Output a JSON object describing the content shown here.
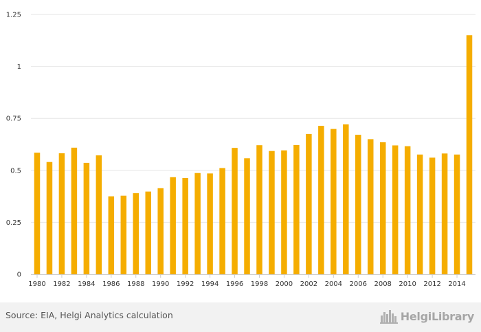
{
  "chart_data": {
    "type": "bar",
    "title": "",
    "xlabel": "",
    "ylabel": "",
    "bar_color": "#F5AD00",
    "grid_color": "#e6e6e6",
    "ylim": [
      0,
      1.25
    ],
    "yticks": [
      0,
      0.25,
      0.5,
      0.75,
      1,
      1.25
    ],
    "ytick_labels": [
      "0",
      "0.25",
      "0.5",
      "0.75",
      "1",
      "1.25"
    ],
    "categories": [
      "1980",
      "1981",
      "1982",
      "1983",
      "1984",
      "1985",
      "1986",
      "1987",
      "1988",
      "1989",
      "1990",
      "1991",
      "1992",
      "1993",
      "1994",
      "1995",
      "1996",
      "1997",
      "1998",
      "1999",
      "2000",
      "2001",
      "2002",
      "2003",
      "2004",
      "2005",
      "2006",
      "2007",
      "2008",
      "2009",
      "2010",
      "2011",
      "2012",
      "2013",
      "2014",
      "2015"
    ],
    "xtick_labels": [
      "1980",
      "1982",
      "1984",
      "1986",
      "1988",
      "1990",
      "1992",
      "1994",
      "1996",
      "1998",
      "2000",
      "2002",
      "2004",
      "2006",
      "2008",
      "2010",
      "2012",
      "2014"
    ],
    "values": [
      0.585,
      0.54,
      0.582,
      0.609,
      0.536,
      0.572,
      0.375,
      0.378,
      0.39,
      0.398,
      0.414,
      0.467,
      0.463,
      0.487,
      0.485,
      0.511,
      0.608,
      0.558,
      0.621,
      0.593,
      0.596,
      0.622,
      0.675,
      0.714,
      0.699,
      0.721,
      0.671,
      0.65,
      0.635,
      0.62,
      0.616,
      0.576,
      0.561,
      0.581,
      0.576,
      1.15
    ]
  },
  "footer": {
    "source": "Source: EIA, Helgi Analytics calculation",
    "brand": "HelgiLibrary",
    "logo_icon": "city-skyline-icon"
  }
}
